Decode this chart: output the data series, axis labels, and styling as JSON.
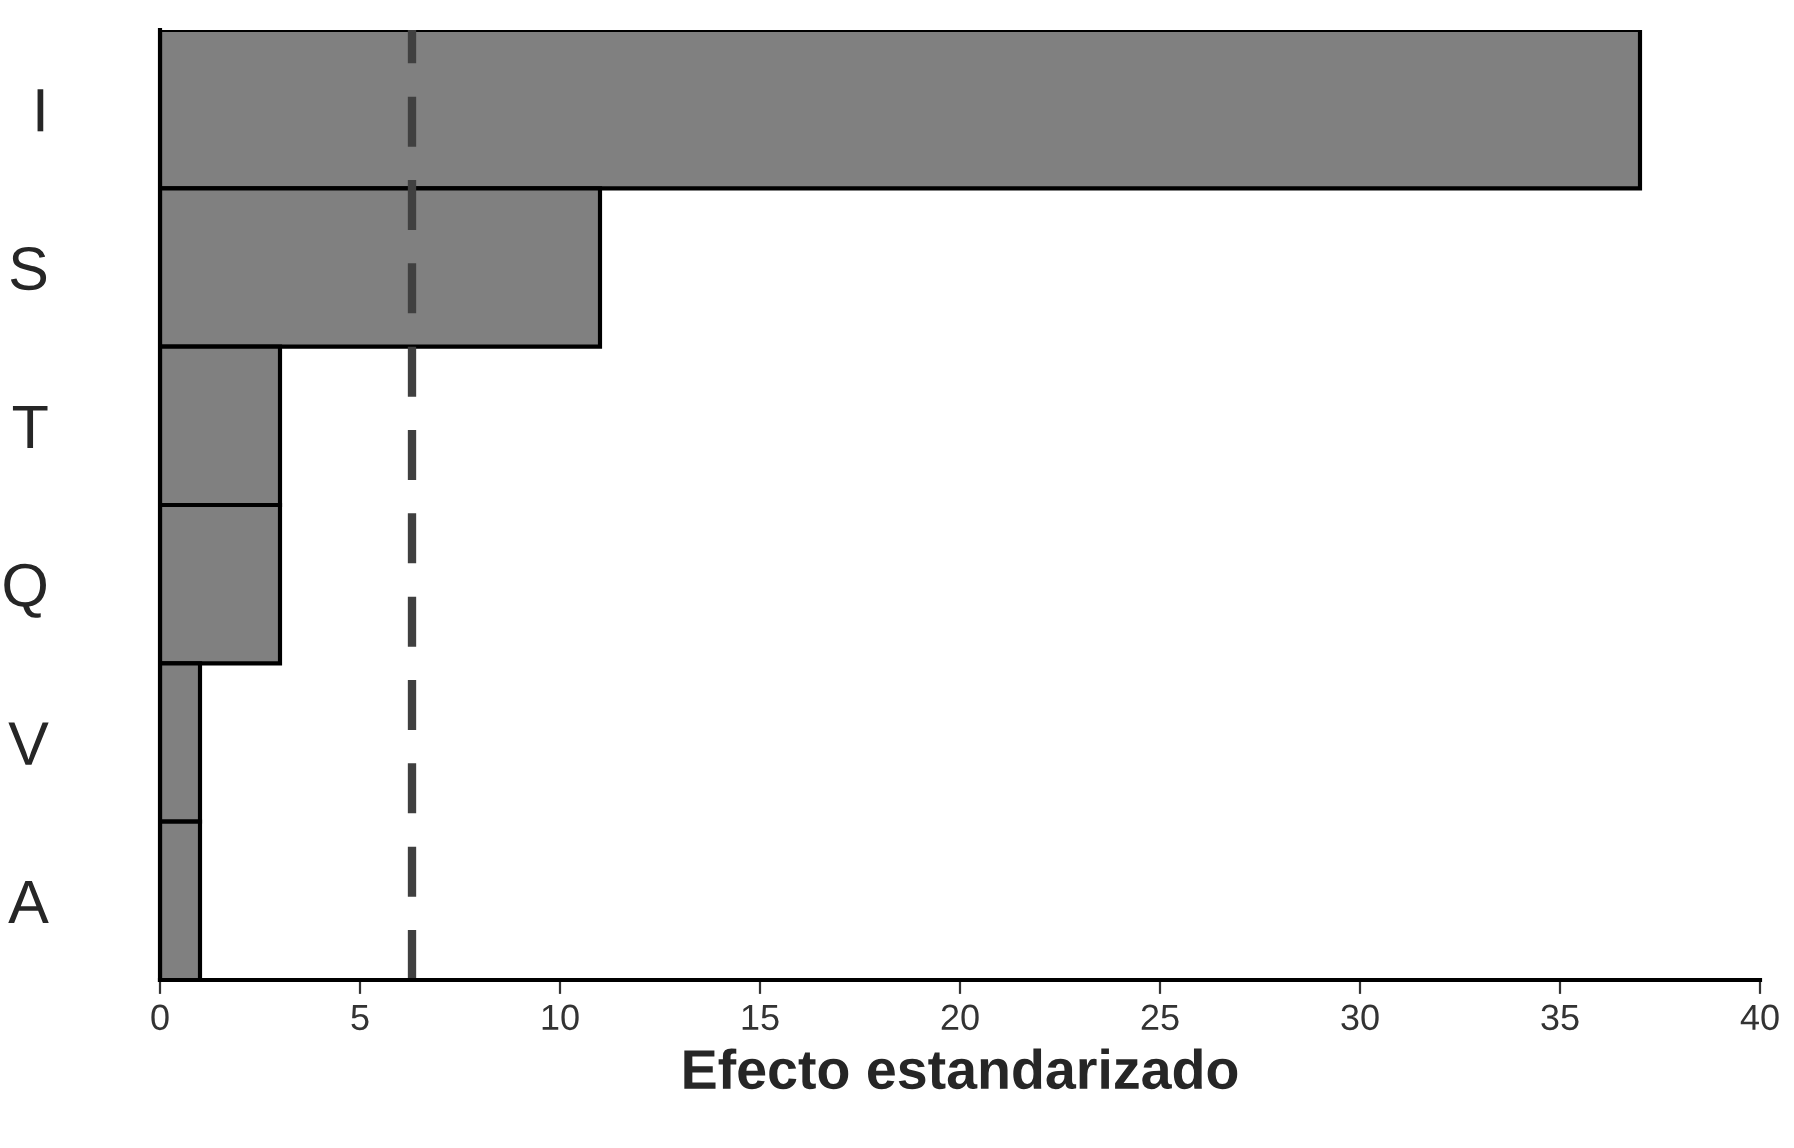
{
  "chart_data": {
    "type": "bar",
    "orientation": "horizontal",
    "xlabel": "Efecto estandarizado",
    "categories": [
      "I",
      "S",
      "T",
      "Q",
      "V",
      "A"
    ],
    "values": [
      37,
      11,
      3,
      3,
      1,
      1
    ],
    "color": "#808080",
    "xlim": [
      0,
      40
    ],
    "xticks": [
      0,
      5,
      10,
      15,
      20,
      25,
      30,
      35,
      40
    ],
    "ref_lines": [
      {
        "axis": "x",
        "value": 6.3,
        "color": "#404040",
        "line_style": "dashed"
      }
    ],
    "grid": false
  }
}
